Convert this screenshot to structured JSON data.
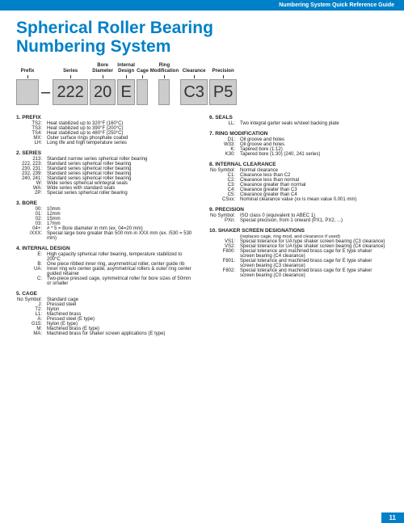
{
  "header": "Numbering System Quick Reference Guide",
  "title1": "Spherical Roller Bearing",
  "title2": "Numbering System",
  "page": "11",
  "diagram": {
    "labels": [
      "Prefix",
      "",
      "Series",
      "Bore Diameter",
      "Internal Design",
      "Cage",
      "Ring Modification",
      "Clearance",
      "Precision"
    ],
    "boxes": [
      "",
      "–",
      "222",
      "20",
      "E",
      "",
      "",
      "C3",
      "P5"
    ]
  },
  "sections": [
    {
      "n": "1.",
      "t": "PREFIX",
      "items": [
        [
          "TS2:",
          "Heat stabilized up to 320°F (160°C)"
        ],
        [
          "TS3:",
          "Heat stabilized up to 390°F (200°C)"
        ],
        [
          "TS4:",
          "Heat stabilized up to 480°F (250°C)"
        ],
        [
          "MX:",
          "Outer surface rings phosphate coated"
        ],
        [
          "LH:",
          "Long life and high temperature series"
        ]
      ]
    },
    {
      "n": "2.",
      "t": "SERIES",
      "items": [
        [
          "213:",
          "Standard narrow series spherical roller bearing"
        ],
        [
          "222, 223:",
          "Standard series spherical roller bearing"
        ],
        [
          "230, 231:",
          "Standard series spherical roller bearing"
        ],
        [
          "232, 239:",
          "Standard series spherical roller bearing"
        ],
        [
          "240, 241:",
          "Standard series spherical roller bearing"
        ],
        [
          "W:",
          "Wide series spherical w/integral seals"
        ],
        [
          "WA:",
          "Wide series with standard seals"
        ],
        [
          "2P:",
          "Special series spherical roller bearing"
        ]
      ]
    },
    {
      "n": "3.",
      "t": "BORE",
      "items": [
        [
          "00:",
          "10mm"
        ],
        [
          "01:",
          "12mm"
        ],
        [
          "02:",
          "15mm"
        ],
        [
          "03:",
          "17mm"
        ],
        [
          "04+:",
          "# * 5 = Bore diameter in mm (ex. 04=20 mm)"
        ],
        [
          "/XXX:",
          "Special large bore greater than 500 mm in XXX mm (ex. /530 = 530 mm)"
        ]
      ]
    },
    {
      "n": "4.",
      "t": "INTERNAL DESIGN",
      "items": [
        [
          "E:",
          "High capacity spherical roller bearing, temperature stabilized to 200°C"
        ],
        [
          "B:",
          "One piece ribbed inner ring, asymmetrical roller, center guide rib"
        ],
        [
          "UA:",
          "Inner ring w/o center guide, asymmetrical rollers & outer ring center guided retainer"
        ],
        [
          "C:",
          "Two-piece pressed cage, symmetrical roller for bore sizes of 50mm or smaller"
        ]
      ]
    },
    {
      "n": "5.",
      "t": "CAGE",
      "items": [
        [
          "No Symbol:",
          "Standard cage"
        ],
        [
          "J:",
          "Pressed steel"
        ],
        [
          "T2:",
          "Nylon"
        ],
        [
          "L1:",
          "Machined brass"
        ],
        [
          "A:",
          "Pressed steel (E type)"
        ],
        [
          "G15:",
          "Nylon (E type)"
        ],
        [
          "M:",
          "Machined brass (E type)"
        ],
        [
          "MA:",
          "Machined brass for shaker screen applications (E type)"
        ]
      ]
    }
  ],
  "rsections": [
    {
      "n": "6.",
      "t": "SEALS",
      "items": [
        [
          "LL:",
          "Two integral garter seals w/steel backing plate"
        ]
      ]
    },
    {
      "n": "7.",
      "t": "RING MODIFICATION",
      "items": [
        [
          "D1:",
          "Oil groove and holes"
        ],
        [
          "W33:",
          "Oil groove and holes"
        ],
        [
          "K:",
          "Tapered bore (1:12)"
        ],
        [
          "K30:",
          "Tapered bore (1:30) (240, 241 series)"
        ]
      ]
    },
    {
      "n": "8.",
      "t": "INTERNAL CLEARANCE",
      "items": [
        [
          "No Symbol:",
          "Normal clearance"
        ],
        [
          "C1:",
          "Clearance less than C2"
        ],
        [
          "C2:",
          "Clearance less than normal"
        ],
        [
          "C3:",
          "Clearance greater than normal"
        ],
        [
          "C4:",
          "Clearance greater than C3"
        ],
        [
          "C5:",
          "Clearance greater than C4"
        ],
        [
          "CSxx:",
          "Nominal clearance value (xx is mean value 0.001 mm)"
        ]
      ]
    },
    {
      "n": "9.",
      "t": "PRECISION",
      "items": [
        [
          "No Symbol:",
          "ISO class 0 (equivalent to ABEC 1)"
        ],
        [
          "PXn:",
          "Special precision, from 1 onward (PX1, PX2, ...)"
        ]
      ]
    },
    {
      "n": "10.",
      "t": "SHAKER SCREEN DESIGNATIONS",
      "note": "(replaces cage, ring mod, and clearance if used)",
      "items": [
        [
          "VS1:",
          "Special tolerance for UA type shaker screen bearing (C3 clearance)"
        ],
        [
          "VS2:",
          "Special tolerance for UA type shaker screen bearing (C4 clearance)"
        ],
        [
          "F800:",
          "Special tolerance and machined brass cage for E type shaker screen bearing (C4 clearance)"
        ],
        [
          "F801:",
          "Special tolerance and machined brass cage for E type shaker screen bearing (C3 clearance)"
        ],
        [
          "F802:",
          "Special tolerance and machined brass cage for E type shaker screen bearing (C0 clearance)"
        ]
      ]
    }
  ]
}
